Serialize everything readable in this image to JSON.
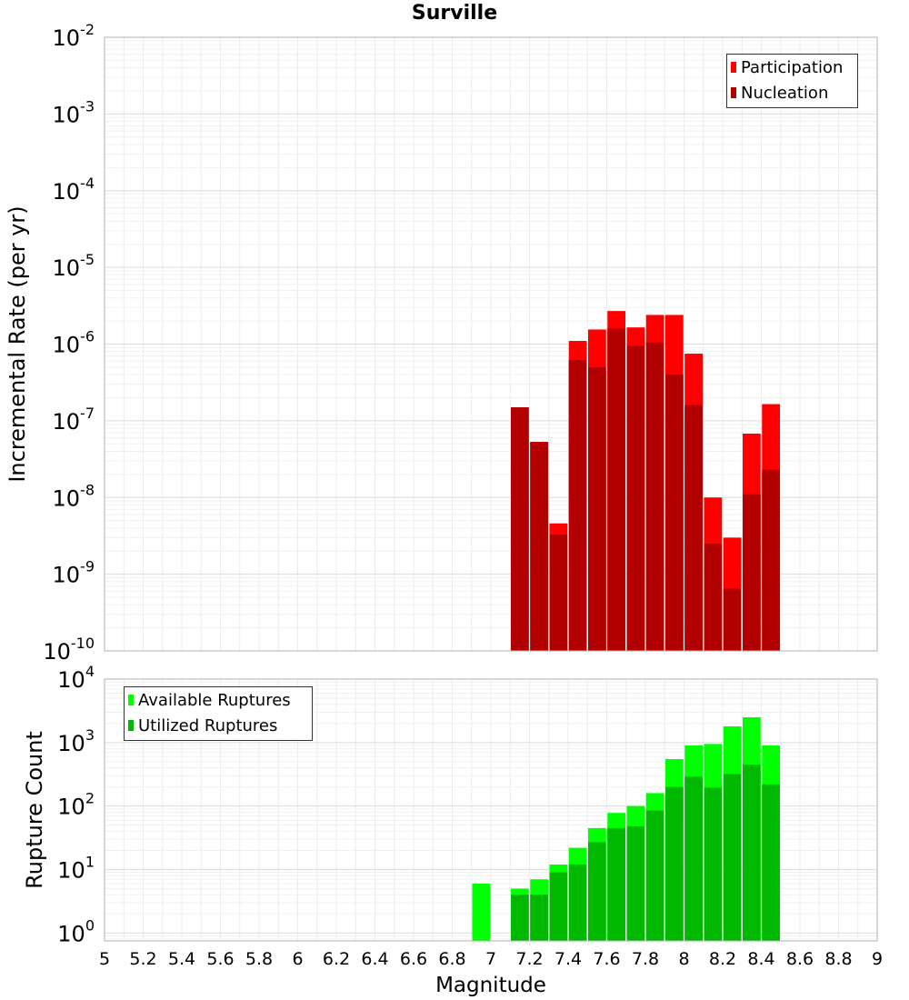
{
  "chart_data": [
    {
      "type": "bar",
      "title": "Surville",
      "xlabel": "",
      "ylabel": "Incremental Rate (per yr)",
      "yscale": "log",
      "xlim": [
        5,
        9
      ],
      "ylim": [
        1e-10,
        0.01
      ],
      "ytick_exponents": [
        "-10",
        "-9",
        "-8",
        "-7",
        "-6",
        "-5",
        "-4",
        "-3",
        "-2"
      ],
      "ytick_base": "10",
      "grid": true,
      "legend_position": "top-right",
      "x": [
        7.15,
        7.25,
        7.35,
        7.45,
        7.55,
        7.65,
        7.75,
        7.85,
        7.95,
        8.05,
        8.15,
        8.25,
        8.35,
        8.45
      ],
      "series": [
        {
          "name": "Participation",
          "color": "#ff0000",
          "values": [
            1.5e-07,
            5.3e-08,
            4.6e-09,
            1.1e-06,
            1.55e-06,
            2.7e-06,
            1.65e-06,
            2.4e-06,
            2.4e-06,
            7.5e-07,
            1e-08,
            3e-09,
            6.8e-08,
            1.65e-07
          ]
        },
        {
          "name": "Nucleation",
          "color": "#b20000",
          "values": [
            1.5e-07,
            5.3e-08,
            3.3e-09,
            6.2e-07,
            5e-07,
            1.6e-06,
            9.5e-07,
            1.05e-06,
            4e-07,
            1.6e-07,
            2.5e-09,
            6.5e-10,
            1.1e-08,
            2.3e-08
          ]
        }
      ]
    },
    {
      "type": "bar",
      "title": "",
      "xlabel": "Magnitude",
      "ylabel": "Rupture Count",
      "yscale": "log",
      "xlim": [
        5,
        9
      ],
      "ylim": [
        0.75,
        10000
      ],
      "ytick_exponents": [
        "0",
        "1",
        "2",
        "3",
        "4"
      ],
      "ytick_base": "10",
      "xticks": [
        "5",
        "5.2",
        "5.4",
        "5.6",
        "5.8",
        "6",
        "6.2",
        "6.4",
        "6.6",
        "6.8",
        "7",
        "7.2",
        "7.4",
        "7.6",
        "7.8",
        "8",
        "8.2",
        "8.4",
        "8.6",
        "8.8",
        "9"
      ],
      "grid": true,
      "legend_position": "top-left",
      "x": [
        6.95,
        7.15,
        7.25,
        7.35,
        7.45,
        7.55,
        7.65,
        7.75,
        7.85,
        7.95,
        8.05,
        8.15,
        8.25,
        8.35,
        8.45
      ],
      "series": [
        {
          "name": "Available Ruptures",
          "color": "#00ff00",
          "values": [
            6,
            5,
            7,
            12,
            22,
            45,
            78,
            100,
            160,
            550,
            900,
            950,
            1800,
            2500,
            900
          ]
        },
        {
          "name": "Utilized Ruptures",
          "color": "#00b800",
          "values": [
            0,
            4,
            4,
            9,
            12,
            27,
            45,
            48,
            85,
            200,
            290,
            195,
            320,
            450,
            220
          ]
        }
      ]
    }
  ]
}
